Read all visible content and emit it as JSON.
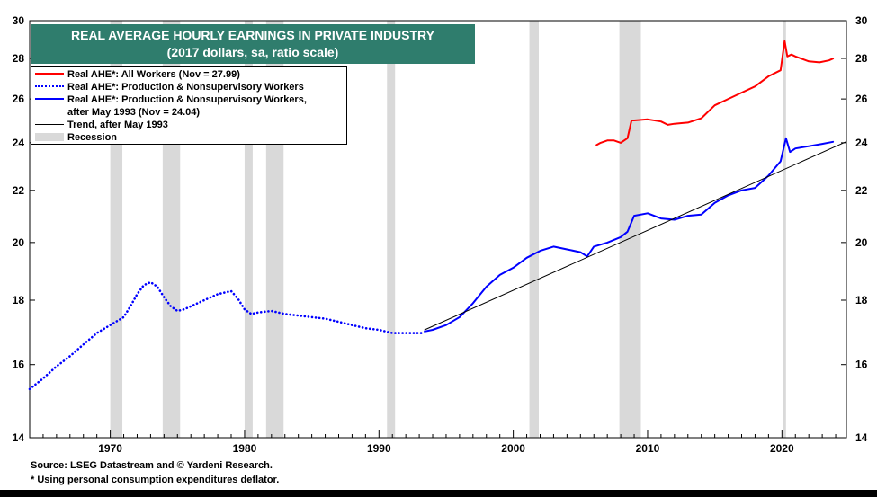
{
  "title": {
    "line1": "REAL AVERAGE HOURLY EARNINGS IN PRIVATE INDUSTRY",
    "line2": "(2017 dollars, sa, ratio scale)"
  },
  "legend": {
    "items": [
      {
        "label": "Real AHE*: All Workers (Nov = 27.99)",
        "color": "#ff0000",
        "style": "solid"
      },
      {
        "label": "Real AHE*: Production & Nonsupervisory Workers",
        "color": "#0000ff",
        "style": "dotted"
      },
      {
        "label": "Real AHE*: Production & Nonsupervisory Workers,",
        "label2": "after May 1993 (Nov = 24.04)",
        "color": "#0000ff",
        "style": "solid"
      },
      {
        "label": "Trend, after May 1993",
        "color": "#000000",
        "style": "thin"
      },
      {
        "label": "Recession",
        "color": "#d9d9d9",
        "style": "box"
      }
    ]
  },
  "footer": {
    "source": "Source: LSEG Datastream and © Yardeni Research.",
    "note": "* Using personal consumption expenditures deflator."
  },
  "colors": {
    "title_bg": "#2f7d6d",
    "all_workers": "#ff0000",
    "production": "#0000ff",
    "trend": "#000000",
    "recession": "#d9d9d9"
  },
  "chart_data": {
    "type": "line",
    "y_scale": "log",
    "ylim": [
      14,
      30
    ],
    "xlim": [
      1964,
      2024.8
    ],
    "y_ticks": [
      14,
      16,
      18,
      20,
      22,
      24,
      26,
      28,
      30
    ],
    "x_ticks": [
      1970,
      1980,
      1990,
      2000,
      2010,
      2020
    ],
    "recessions": [
      [
        1970.0,
        1970.9
      ],
      [
        1973.9,
        1975.2
      ],
      [
        1980.0,
        1980.6
      ],
      [
        1981.6,
        1982.9
      ],
      [
        1990.6,
        1991.2
      ],
      [
        2001.2,
        2001.9
      ],
      [
        2007.9,
        2009.5
      ],
      [
        2020.1,
        2020.3
      ]
    ],
    "series": [
      {
        "name": "Real AHE*: Production & Nonsupervisory Workers",
        "style": "dotted",
        "x": [
          1964.0,
          1965.0,
          1966.0,
          1967.0,
          1968.0,
          1969.0,
          1970.0,
          1971.0,
          1971.5,
          1972.0,
          1972.5,
          1973.0,
          1973.5,
          1974.0,
          1974.5,
          1975.0,
          1975.5,
          1976.0,
          1977.0,
          1978.0,
          1979.0,
          1979.5,
          1980.0,
          1980.5,
          1981.0,
          1982.0,
          1983.0,
          1984.0,
          1985.0,
          1986.0,
          1987.0,
          1988.0,
          1989.0,
          1990.0,
          1991.0,
          1992.0,
          1993.4
        ],
        "y": [
          15.3,
          15.6,
          15.95,
          16.25,
          16.6,
          16.95,
          17.2,
          17.45,
          17.8,
          18.2,
          18.5,
          18.6,
          18.45,
          18.1,
          17.8,
          17.65,
          17.7,
          17.8,
          18.0,
          18.2,
          18.3,
          18.05,
          17.7,
          17.55,
          17.6,
          17.65,
          17.55,
          17.5,
          17.45,
          17.4,
          17.3,
          17.2,
          17.1,
          17.05,
          16.95,
          16.95,
          16.95
        ]
      },
      {
        "name": "Real AHE*: Production & Nonsupervisory Workers, after May 1993 (Nov = 24.04)",
        "style": "solid",
        "x": [
          1993.4,
          1994.0,
          1995.0,
          1996.0,
          1997.0,
          1998.0,
          1999.0,
          2000.0,
          2001.0,
          2002.0,
          2003.0,
          2004.0,
          2005.0,
          2005.5,
          2006.0,
          2007.0,
          2008.0,
          2008.5,
          2009.0,
          2010.0,
          2011.0,
          2012.0,
          2013.0,
          2014.0,
          2015.0,
          2016.0,
          2017.0,
          2018.0,
          2019.0,
          2019.9,
          2020.3,
          2020.6,
          2021.0,
          2022.0,
          2023.0,
          2023.8
        ],
        "y": [
          17.0,
          17.05,
          17.2,
          17.45,
          17.9,
          18.45,
          18.85,
          19.1,
          19.45,
          19.7,
          19.85,
          19.75,
          19.65,
          19.5,
          19.85,
          20.0,
          20.2,
          20.4,
          21.0,
          21.1,
          20.9,
          20.85,
          21.0,
          21.05,
          21.5,
          21.8,
          22.0,
          22.1,
          22.6,
          23.2,
          24.2,
          23.6,
          23.75,
          23.85,
          23.95,
          24.04
        ]
      },
      {
        "name": "Real AHE*: All Workers (Nov = 27.99)",
        "style": "solid",
        "x": [
          2006.2,
          2006.5,
          2007.0,
          2007.5,
          2008.0,
          2008.5,
          2008.8,
          2009.0,
          2010.0,
          2011.0,
          2011.5,
          2012.0,
          2013.0,
          2014.0,
          2015.0,
          2016.0,
          2017.0,
          2018.0,
          2019.0,
          2019.9,
          2020.2,
          2020.4,
          2020.7,
          2021.0,
          2022.0,
          2022.8,
          2023.5,
          2023.8
        ],
        "y": [
          23.9,
          24.0,
          24.1,
          24.1,
          24.0,
          24.2,
          25.0,
          25.0,
          25.05,
          24.95,
          24.8,
          24.85,
          24.9,
          25.1,
          25.7,
          26.0,
          26.3,
          26.6,
          27.1,
          27.4,
          28.9,
          28.1,
          28.2,
          28.1,
          27.85,
          27.8,
          27.9,
          27.99
        ]
      },
      {
        "name": "Trend, after May 1993",
        "style": "thin",
        "x": [
          1993.4,
          2024.8
        ],
        "y": [
          17.05,
          24.05
        ]
      }
    ]
  }
}
